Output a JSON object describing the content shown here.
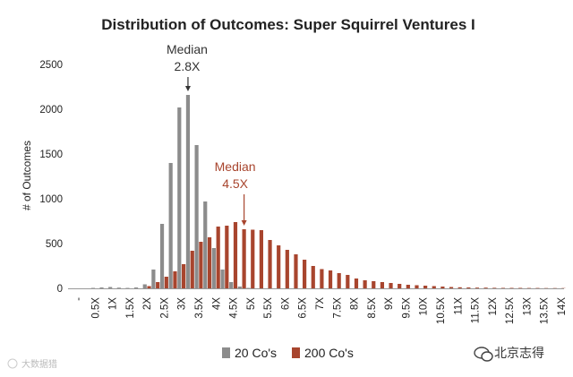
{
  "chart_data": {
    "type": "bar",
    "title": "Distribution of Outcomes: Super Squirrel Ventures I",
    "xlabel": "",
    "ylabel": "# of Outcomes",
    "ylim": [
      0,
      2500
    ],
    "yticks": [
      0,
      500,
      1000,
      1500,
      2000,
      2500
    ],
    "categories": [
      "-",
      "",
      "0.5X",
      "",
      "1X",
      "",
      "1.5X",
      "",
      "2X",
      "",
      "2.5X",
      "",
      "3X",
      "",
      "3.5X",
      "",
      "4X",
      "",
      "4.5X",
      "",
      "5X",
      "",
      "5.5X",
      "",
      "6X",
      "",
      "6.5X",
      "",
      "7X",
      "",
      "7.5X",
      "",
      "8X",
      "",
      "8.5X",
      "",
      "9X",
      "",
      "9.5X",
      "",
      "10X",
      "",
      "10.5X",
      "",
      "11X",
      "",
      "11.5X",
      "",
      "12X",
      "",
      "12.5X",
      "",
      "13X",
      "",
      "13.5X",
      "",
      "14X"
    ],
    "series": [
      {
        "name": "20 Co's",
        "color": "#8c8c8c",
        "values": [
          0,
          0,
          5,
          10,
          15,
          8,
          5,
          10,
          45,
          210,
          720,
          1400,
          2020,
          2160,
          1600,
          970,
          450,
          210,
          70,
          20,
          5,
          0,
          0,
          0,
          0,
          0,
          0,
          0,
          0,
          0,
          0,
          0,
          0,
          0,
          0,
          0,
          0,
          0,
          0,
          0,
          0,
          0,
          0,
          0,
          0,
          0,
          0,
          0,
          0,
          0,
          0,
          0,
          0,
          0,
          0,
          0,
          0
        ]
      },
      {
        "name": "200 Co's",
        "color": "#a8452e",
        "values": [
          0,
          0,
          0,
          0,
          0,
          0,
          0,
          0,
          25,
          70,
          130,
          190,
          270,
          420,
          520,
          570,
          690,
          700,
          740,
          660,
          655,
          650,
          540,
          480,
          430,
          380,
          320,
          250,
          215,
          200,
          170,
          150,
          110,
          90,
          80,
          70,
          60,
          50,
          40,
          35,
          30,
          25,
          20,
          15,
          12,
          10,
          8,
          8,
          6,
          5,
          5,
          5,
          4,
          4,
          3,
          3,
          3
        ]
      }
    ],
    "legend_position": "bottom",
    "grid": false,
    "annotations": [
      {
        "line1": "Median",
        "line2": "2.8X",
        "color": "#333333",
        "at_index": 13
      },
      {
        "line1": "Median",
        "line2": "4.5X",
        "color": "#a8452e",
        "at_index": 19
      }
    ]
  },
  "watermark": {
    "right_text": "北京志得",
    "left_text": "大数据猎"
  }
}
